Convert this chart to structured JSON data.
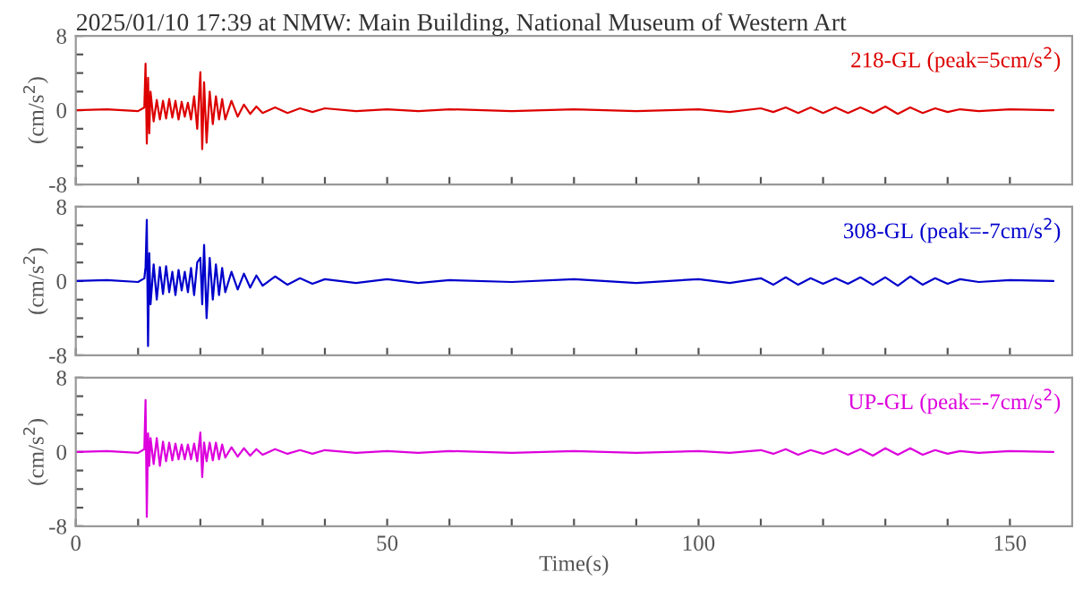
{
  "chart_data": [
    {
      "type": "line",
      "title": "2025/01/10 17:39 at NMW: Main Building, National Museum of Western Art",
      "ylabel": "(cm/s$^{2}$)",
      "legend": "top right",
      "tick_labels": "y",
      "x": [
        0,
        5,
        10,
        11,
        11.2,
        11.4,
        11.6,
        11.8,
        12,
        12.5,
        13,
        13.5,
        14,
        14.5,
        15,
        15.5,
        16,
        16.5,
        17,
        17.5,
        18,
        18.5,
        19,
        19.5,
        20,
        20.3,
        20.6,
        21,
        21.5,
        22,
        22.5,
        23,
        23.5,
        24,
        25,
        26,
        27,
        28,
        29,
        30,
        32,
        34,
        36,
        38,
        40,
        45,
        50,
        55,
        60,
        70,
        80,
        90,
        100,
        105,
        110,
        112,
        114,
        116,
        118,
        120,
        122,
        124,
        126,
        128,
        130,
        132,
        134,
        136,
        138,
        140,
        142,
        145,
        150,
        157
      ],
      "series": [
        {
          "name": "218-GL (peak=5cm/s$^{2}$)",
          "color": "#dd0000",
          "values": [
            0,
            0.1,
            -0.1,
            0.3,
            5,
            -3.6,
            3.5,
            -2.5,
            2,
            -1.2,
            1.1,
            -1.0,
            1.0,
            -0.9,
            1.2,
            -0.8,
            1.0,
            -1.0,
            0.9,
            -0.7,
            0.8,
            -1.0,
            1.5,
            -2.0,
            4.1,
            -4.2,
            3.0,
            -3.5,
            2.0,
            -1.5,
            1.5,
            -1.0,
            1.2,
            -1.0,
            1.0,
            -0.7,
            0.6,
            -0.4,
            0.4,
            -0.3,
            0.3,
            -0.3,
            0.2,
            -0.2,
            0.2,
            -0.1,
            0.1,
            -0.1,
            0.1,
            -0.1,
            0.1,
            -0.1,
            0.1,
            -0.2,
            0.2,
            -0.2,
            0.3,
            -0.3,
            0.3,
            -0.3,
            0.3,
            -0.3,
            0.3,
            -0.3,
            0.4,
            -0.4,
            0.3,
            -0.3,
            0.2,
            -0.2,
            0.1,
            -0.1,
            0.1,
            0
          ]
        }
      ],
      "xlim": [
        0,
        160
      ],
      "xticks": [
        0,
        {
          "value": 10,
          "label": null
        },
        {
          "value": 20,
          "label": null
        },
        {
          "value": 30,
          "label": null
        },
        {
          "value": 40,
          "label": null
        },
        50,
        {
          "value": 60,
          "label": null
        },
        {
          "value": 70,
          "label": null
        },
        {
          "value": 80,
          "label": null
        },
        {
          "value": 90,
          "label": null
        },
        100,
        {
          "value": 110,
          "label": null
        },
        {
          "value": 120,
          "label": null
        },
        {
          "value": 130,
          "label": null
        },
        {
          "value": 140,
          "label": null
        },
        150
      ],
      "ylim": [
        -8,
        8
      ],
      "yticks": [
        -8,
        {
          "value": -6,
          "label": null
        },
        {
          "value": -4,
          "label": null
        },
        {
          "value": -2,
          "label": null
        },
        0,
        {
          "value": 2,
          "label": null
        },
        {
          "value": 4,
          "label": null
        },
        {
          "value": 6,
          "label": null
        },
        8
      ]
    },
    {
      "type": "line",
      "ylabel": "(cm/s$^{2}$)",
      "legend": "top right",
      "tick_labels": "y",
      "x": [
        0,
        5,
        10,
        11,
        11.2,
        11.4,
        11.6,
        11.8,
        12,
        12.5,
        13,
        13.5,
        14,
        14.5,
        15,
        15.5,
        16,
        16.5,
        17,
        17.5,
        18,
        18.5,
        19,
        19.5,
        20,
        20.3,
        20.6,
        21,
        21.5,
        22,
        22.5,
        23,
        23.5,
        24,
        25,
        26,
        27,
        28,
        29,
        30,
        32,
        34,
        36,
        38,
        40,
        45,
        50,
        55,
        60,
        70,
        80,
        90,
        100,
        105,
        110,
        112,
        114,
        116,
        118,
        120,
        122,
        124,
        126,
        128,
        130,
        132,
        134,
        136,
        138,
        140,
        142,
        145,
        150,
        157
      ],
      "series": [
        {
          "name": "308-GL (peak=-7cm/s$^{2}$)",
          "color": "#0000cc",
          "values": [
            0,
            0.1,
            -0.1,
            0.3,
            1.5,
            6.6,
            -7,
            3,
            -2.5,
            1.8,
            -2.0,
            1.5,
            -1.4,
            1.6,
            -1.2,
            1.0,
            -1.5,
            1.2,
            -1.0,
            1.0,
            -1.2,
            1.4,
            -1.5,
            2.0,
            2.5,
            -2.5,
            3.9,
            -4.0,
            2.5,
            -2.0,
            1.8,
            -1.5,
            1.4,
            -1.2,
            1.0,
            -0.9,
            0.8,
            -0.7,
            0.6,
            -0.5,
            0.5,
            -0.4,
            0.3,
            -0.3,
            0.2,
            -0.2,
            0.2,
            -0.2,
            0.1,
            -0.1,
            0.2,
            -0.2,
            0.2,
            -0.2,
            0.3,
            -0.4,
            0.4,
            -0.4,
            0.3,
            -0.3,
            0.3,
            -0.3,
            0.4,
            -0.4,
            0.4,
            -0.5,
            0.5,
            -0.4,
            0.3,
            -0.3,
            0.2,
            -0.1,
            0.1,
            0
          ]
        }
      ],
      "xlim": [
        0,
        160
      ],
      "xticks": [
        0,
        {
          "value": 10,
          "label": null
        },
        {
          "value": 20,
          "label": null
        },
        {
          "value": 30,
          "label": null
        },
        {
          "value": 40,
          "label": null
        },
        50,
        {
          "value": 60,
          "label": null
        },
        {
          "value": 70,
          "label": null
        },
        {
          "value": 80,
          "label": null
        },
        {
          "value": 90,
          "label": null
        },
        100,
        {
          "value": 110,
          "label": null
        },
        {
          "value": 120,
          "label": null
        },
        {
          "value": 130,
          "label": null
        },
        {
          "value": 140,
          "label": null
        },
        150
      ],
      "ylim": [
        -8,
        8
      ],
      "yticks": [
        -8,
        {
          "value": -6,
          "label": null
        },
        {
          "value": -4,
          "label": null
        },
        {
          "value": -2,
          "label": null
        },
        0,
        {
          "value": 2,
          "label": null
        },
        {
          "value": 4,
          "label": null
        },
        {
          "value": 6,
          "label": null
        },
        8
      ]
    },
    {
      "type": "line",
      "xlabel": "Time(s)",
      "ylabel": "(cm/s$^{2}$)",
      "legend": "top right",
      "x": [
        0,
        5,
        10,
        11,
        11.2,
        11.4,
        11.6,
        11.8,
        12,
        12.5,
        13,
        13.5,
        14,
        14.5,
        15,
        15.5,
        16,
        16.5,
        17,
        17.5,
        18,
        18.5,
        19,
        19.5,
        20,
        20.3,
        20.6,
        21,
        21.5,
        22,
        22.5,
        23,
        23.5,
        24,
        25,
        26,
        27,
        28,
        29,
        30,
        32,
        34,
        36,
        38,
        40,
        45,
        50,
        55,
        60,
        70,
        80,
        90,
        100,
        105,
        110,
        112,
        114,
        116,
        118,
        120,
        122,
        124,
        126,
        128,
        130,
        132,
        134,
        136,
        138,
        140,
        142,
        145,
        150,
        157
      ],
      "series": [
        {
          "name": "UP-GL (peak=-7cm/s$^{2}$)",
          "color": "#dd00dd",
          "values": [
            0,
            0.1,
            -0.1,
            0.3,
            5.6,
            -7,
            2,
            -1.5,
            1.5,
            -1.3,
            1.5,
            -1.5,
            1.1,
            -1.0,
            1.0,
            -0.9,
            0.9,
            -0.8,
            0.8,
            -0.8,
            0.8,
            -0.8,
            0.9,
            -1.0,
            2.1,
            -2.7,
            1.0,
            -1.0,
            1.0,
            -0.9,
            1.0,
            -0.8,
            0.8,
            -0.6,
            0.5,
            -0.5,
            0.4,
            -0.4,
            0.3,
            -0.3,
            0.3,
            -0.2,
            0.2,
            -0.2,
            0.2,
            -0.1,
            0.1,
            -0.1,
            0.1,
            -0.1,
            0.1,
            -0.1,
            0.1,
            -0.1,
            0.2,
            -0.2,
            0.3,
            -0.3,
            0.2,
            -0.2,
            0.3,
            -0.3,
            0.3,
            -0.4,
            0.4,
            -0.3,
            0.4,
            -0.3,
            0.2,
            -0.2,
            0.1,
            -0.1,
            0.1,
            0
          ]
        }
      ],
      "xlim": [
        0,
        160
      ],
      "xticks": [
        0,
        {
          "value": 10,
          "label": null
        },
        {
          "value": 20,
          "label": null
        },
        {
          "value": 30,
          "label": null
        },
        {
          "value": 40,
          "label": null
        },
        50,
        {
          "value": 60,
          "label": null
        },
        {
          "value": 70,
          "label": null
        },
        {
          "value": 80,
          "label": null
        },
        {
          "value": 90,
          "label": null
        },
        100,
        {
          "value": 110,
          "label": null
        },
        {
          "value": 120,
          "label": null
        },
        {
          "value": 130,
          "label": null
        },
        {
          "value": 140,
          "label": null
        },
        150
      ],
      "ylim": [
        -8,
        8
      ],
      "yticks": [
        -8,
        {
          "value": -6,
          "label": null
        },
        {
          "value": -4,
          "label": null
        },
        {
          "value": -2,
          "label": null
        },
        0,
        {
          "value": 2,
          "label": null
        },
        {
          "value": 4,
          "label": null
        },
        {
          "value": 6,
          "label": null
        },
        8
      ]
    }
  ]
}
